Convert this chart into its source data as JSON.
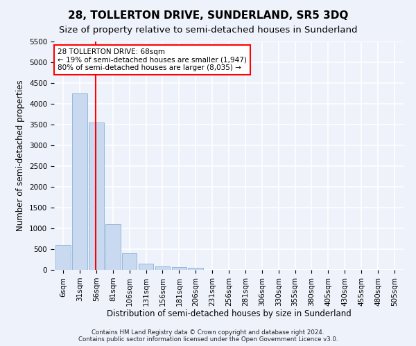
{
  "title": "28, TOLLERTON DRIVE, SUNDERLAND, SR5 3DQ",
  "subtitle": "Size of property relative to semi-detached houses in Sunderland",
  "xlabel": "Distribution of semi-detached houses by size in Sunderland",
  "ylabel": "Number of semi-detached properties",
  "footnote": "Contains HM Land Registry data © Crown copyright and database right 2024.\nContains public sector information licensed under the Open Government Licence v3.0.",
  "bar_categories": [
    "6sqm",
    "31sqm",
    "56sqm",
    "81sqm",
    "106sqm",
    "131sqm",
    "156sqm",
    "181sqm",
    "206sqm",
    "231sqm",
    "256sqm",
    "281sqm",
    "306sqm",
    "330sqm",
    "355sqm",
    "380sqm",
    "405sqm",
    "430sqm",
    "455sqm",
    "480sqm",
    "505sqm"
  ],
  "bar_values": [
    600,
    4250,
    3550,
    1100,
    400,
    150,
    80,
    60,
    50,
    0,
    0,
    0,
    0,
    0,
    0,
    0,
    0,
    0,
    0,
    0,
    0
  ],
  "bar_color": "#c9d9f0",
  "bar_edge_color": "#8ab0d8",
  "property_line_color": "red",
  "annotation_text": "28 TOLLERTON DRIVE: 68sqm\n← 19% of semi-detached houses are smaller (1,947)\n80% of semi-detached houses are larger (8,035) →",
  "annotation_box_color": "white",
  "annotation_box_edge_color": "red",
  "ylim": [
    0,
    5500
  ],
  "yticks": [
    0,
    500,
    1000,
    1500,
    2000,
    2500,
    3000,
    3500,
    4000,
    4500,
    5000,
    5500
  ],
  "background_color": "#eef2fb",
  "grid_color": "white",
  "title_fontsize": 11,
  "subtitle_fontsize": 9.5,
  "axis_label_fontsize": 8.5,
  "tick_fontsize": 7.5,
  "annotation_fontsize": 7.5
}
